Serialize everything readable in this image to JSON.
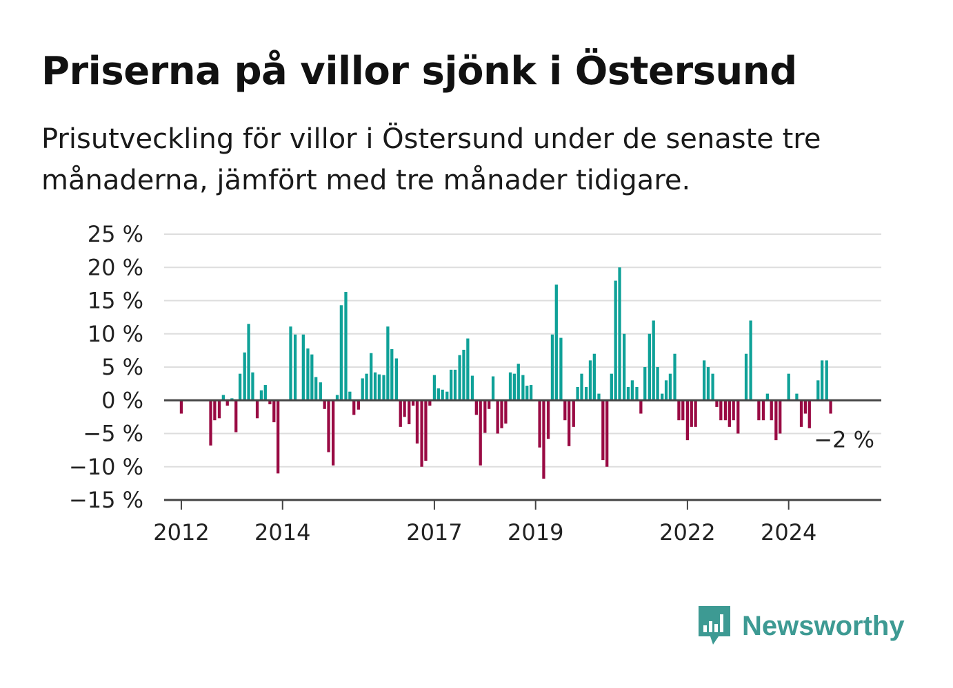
{
  "header": {
    "title": "Priserna på villor sjönk i Östersund",
    "subtitle": "Prisutveckling för villor i Östersund under de senaste tre månaderna, jämfört med tre månader tidigare."
  },
  "brand": {
    "name": "Newsworthy",
    "color": "#3d9a93",
    "icon": "bar-chart-speech-bubble-icon"
  },
  "colors": {
    "positive": "#0fa198",
    "negative": "#990a43",
    "grid": "#dddddd",
    "axis": "#444444"
  },
  "chart_data": {
    "type": "bar",
    "ylim": [
      -15,
      25
    ],
    "y_ticks": [
      25,
      20,
      15,
      10,
      5,
      0,
      -5,
      -10,
      -15
    ],
    "y_tick_labels": [
      "25 %",
      "20 %",
      "15 %",
      "10 %",
      "5 %",
      "0 %",
      "−5 %",
      "−10 %",
      "−15 %"
    ],
    "x_ticks": [
      2012,
      2014,
      2017,
      2019,
      2022,
      2024
    ],
    "x_tick_labels": [
      "2012",
      "2014",
      "2017",
      "2019",
      "2022",
      "2024"
    ],
    "x_range": [
      2011.66,
      2025.83
    ],
    "grid": true,
    "last_value_label": "−2 %",
    "points": [
      {
        "x": 2012.0,
        "y": -2
      },
      {
        "x": 2012.58,
        "y": -6.8
      },
      {
        "x": 2012.66,
        "y": -3
      },
      {
        "x": 2012.75,
        "y": -2.7
      },
      {
        "x": 2012.83,
        "y": 0.8
      },
      {
        "x": 2012.91,
        "y": -0.8
      },
      {
        "x": 2013.0,
        "y": 0.3
      },
      {
        "x": 2013.08,
        "y": -4.8
      },
      {
        "x": 2013.16,
        "y": 4
      },
      {
        "x": 2013.25,
        "y": 7.2
      },
      {
        "x": 2013.33,
        "y": 11.5
      },
      {
        "x": 2013.41,
        "y": 4.2
      },
      {
        "x": 2013.5,
        "y": -2.7
      },
      {
        "x": 2013.58,
        "y": 1.5
      },
      {
        "x": 2013.66,
        "y": 2.3
      },
      {
        "x": 2013.75,
        "y": -0.6
      },
      {
        "x": 2013.83,
        "y": -3.3
      },
      {
        "x": 2013.91,
        "y": -11
      },
      {
        "x": 2014.16,
        "y": 11.1
      },
      {
        "x": 2014.25,
        "y": 9.9
      },
      {
        "x": 2014.41,
        "y": 9.9
      },
      {
        "x": 2014.5,
        "y": 7.8
      },
      {
        "x": 2014.58,
        "y": 6.9
      },
      {
        "x": 2014.66,
        "y": 3.5
      },
      {
        "x": 2014.75,
        "y": 2.7
      },
      {
        "x": 2014.83,
        "y": -1.3
      },
      {
        "x": 2014.91,
        "y": -7.8
      },
      {
        "x": 2015.0,
        "y": -9.8
      },
      {
        "x": 2015.08,
        "y": 0.8
      },
      {
        "x": 2015.16,
        "y": 14.3
      },
      {
        "x": 2015.25,
        "y": 16.3
      },
      {
        "x": 2015.33,
        "y": 1.3
      },
      {
        "x": 2015.41,
        "y": -2.2
      },
      {
        "x": 2015.5,
        "y": -1.4
      },
      {
        "x": 2015.58,
        "y": 3.3
      },
      {
        "x": 2015.66,
        "y": 4
      },
      {
        "x": 2015.75,
        "y": 7.1
      },
      {
        "x": 2015.83,
        "y": 4.2
      },
      {
        "x": 2015.91,
        "y": 3.9
      },
      {
        "x": 2016.0,
        "y": 3.8
      },
      {
        "x": 2016.08,
        "y": 11.1
      },
      {
        "x": 2016.16,
        "y": 7.7
      },
      {
        "x": 2016.25,
        "y": 6.3
      },
      {
        "x": 2016.33,
        "y": -4
      },
      {
        "x": 2016.41,
        "y": -2.5
      },
      {
        "x": 2016.5,
        "y": -3.6
      },
      {
        "x": 2016.58,
        "y": -0.8
      },
      {
        "x": 2016.66,
        "y": -6.5
      },
      {
        "x": 2016.75,
        "y": -10
      },
      {
        "x": 2016.83,
        "y": -9.1
      },
      {
        "x": 2016.91,
        "y": -0.8
      },
      {
        "x": 2017.0,
        "y": 3.8
      },
      {
        "x": 2017.08,
        "y": 1.8
      },
      {
        "x": 2017.16,
        "y": 1.6
      },
      {
        "x": 2017.25,
        "y": 1.3
      },
      {
        "x": 2017.33,
        "y": 4.6
      },
      {
        "x": 2017.41,
        "y": 4.6
      },
      {
        "x": 2017.5,
        "y": 6.8
      },
      {
        "x": 2017.58,
        "y": 7.6
      },
      {
        "x": 2017.66,
        "y": 9.3
      },
      {
        "x": 2017.75,
        "y": 3.7
      },
      {
        "x": 2017.83,
        "y": -2.2
      },
      {
        "x": 2017.91,
        "y": -9.8
      },
      {
        "x": 2018.0,
        "y": -4.9
      },
      {
        "x": 2018.08,
        "y": -1.3
      },
      {
        "x": 2018.16,
        "y": 3.6
      },
      {
        "x": 2018.25,
        "y": -5
      },
      {
        "x": 2018.33,
        "y": -4.2
      },
      {
        "x": 2018.41,
        "y": -3.5
      },
      {
        "x": 2018.5,
        "y": 4.2
      },
      {
        "x": 2018.58,
        "y": 4
      },
      {
        "x": 2018.66,
        "y": 5.5
      },
      {
        "x": 2018.75,
        "y": 3.8
      },
      {
        "x": 2018.83,
        "y": 2.2
      },
      {
        "x": 2018.91,
        "y": 2.3
      },
      {
        "x": 2019.08,
        "y": -7.1
      },
      {
        "x": 2019.16,
        "y": -11.8
      },
      {
        "x": 2019.25,
        "y": -5.8
      },
      {
        "x": 2019.33,
        "y": 9.9
      },
      {
        "x": 2019.41,
        "y": 17.4
      },
      {
        "x": 2019.5,
        "y": 9.4
      },
      {
        "x": 2019.58,
        "y": -3
      },
      {
        "x": 2019.66,
        "y": -6.9
      },
      {
        "x": 2019.75,
        "y": -4
      },
      {
        "x": 2019.83,
        "y": 2
      },
      {
        "x": 2019.91,
        "y": 4
      },
      {
        "x": 2020.0,
        "y": 2
      },
      {
        "x": 2020.08,
        "y": 6
      },
      {
        "x": 2020.16,
        "y": 7
      },
      {
        "x": 2020.25,
        "y": 1
      },
      {
        "x": 2020.33,
        "y": -9
      },
      {
        "x": 2020.41,
        "y": -10
      },
      {
        "x": 2020.5,
        "y": 4
      },
      {
        "x": 2020.58,
        "y": 18
      },
      {
        "x": 2020.66,
        "y": 20
      },
      {
        "x": 2020.75,
        "y": 10
      },
      {
        "x": 2020.83,
        "y": 2
      },
      {
        "x": 2020.91,
        "y": 3
      },
      {
        "x": 2021.0,
        "y": 2
      },
      {
        "x": 2021.08,
        "y": -2
      },
      {
        "x": 2021.16,
        "y": 5
      },
      {
        "x": 2021.25,
        "y": 10
      },
      {
        "x": 2021.33,
        "y": 12
      },
      {
        "x": 2021.41,
        "y": 5
      },
      {
        "x": 2021.5,
        "y": 1
      },
      {
        "x": 2021.58,
        "y": 3
      },
      {
        "x": 2021.66,
        "y": 4
      },
      {
        "x": 2021.75,
        "y": 7
      },
      {
        "x": 2021.83,
        "y": -3
      },
      {
        "x": 2021.91,
        "y": -3
      },
      {
        "x": 2022.0,
        "y": -6
      },
      {
        "x": 2022.08,
        "y": -4
      },
      {
        "x": 2022.16,
        "y": -4
      },
      {
        "x": 2022.25,
        "y": 0
      },
      {
        "x": 2022.33,
        "y": 6
      },
      {
        "x": 2022.41,
        "y": 5
      },
      {
        "x": 2022.5,
        "y": 4
      },
      {
        "x": 2022.58,
        "y": -1
      },
      {
        "x": 2022.66,
        "y": -3
      },
      {
        "x": 2022.75,
        "y": -3
      },
      {
        "x": 2022.83,
        "y": -4
      },
      {
        "x": 2022.91,
        "y": -3
      },
      {
        "x": 2023.0,
        "y": -5
      },
      {
        "x": 2023.16,
        "y": 7
      },
      {
        "x": 2023.25,
        "y": 12
      },
      {
        "x": 2023.41,
        "y": -3
      },
      {
        "x": 2023.5,
        "y": -3
      },
      {
        "x": 2023.58,
        "y": 1
      },
      {
        "x": 2023.66,
        "y": -3
      },
      {
        "x": 2023.75,
        "y": -6
      },
      {
        "x": 2023.83,
        "y": -5
      },
      {
        "x": 2024.0,
        "y": 4
      },
      {
        "x": 2024.16,
        "y": 1
      },
      {
        "x": 2024.25,
        "y": -4
      },
      {
        "x": 2024.33,
        "y": -2
      },
      {
        "x": 2024.41,
        "y": -4.2
      },
      {
        "x": 2024.58,
        "y": 3
      },
      {
        "x": 2024.66,
        "y": 6
      },
      {
        "x": 2024.75,
        "y": 6
      },
      {
        "x": 2024.83,
        "y": -2
      }
    ]
  }
}
